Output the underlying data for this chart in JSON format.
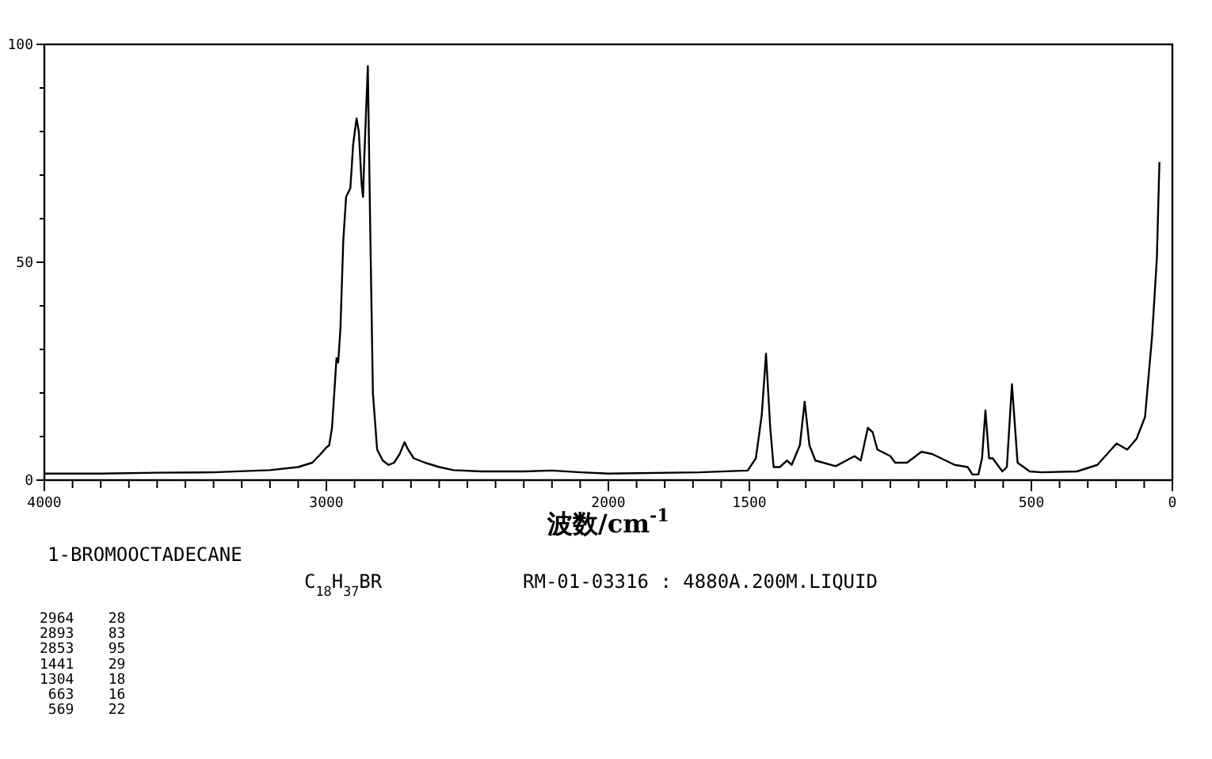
{
  "chart_data": {
    "type": "line",
    "xlabel": "波数/cm$^{-1}$",
    "annotations": [
      "1-BROMOOCTADECANE",
      "C$_{18}$H$_{37}$BR",
      "RM-01-03316 : 4880A.200M.LIQUID",
      "2964    28",
      "2893    83",
      "2853    95",
      "1441    29",
      "1304    18",
      " 663    16",
      " 569    22"
    ],
    "x": [
      4000,
      3800,
      3600,
      3400,
      3200,
      3100,
      3050,
      3020,
      3000,
      2990,
      2980,
      2970,
      2964,
      2958,
      2950,
      2940,
      2930,
      2915,
      2905,
      2893,
      2885,
      2875,
      2870,
      2865,
      2853,
      2845,
      2835,
      2820,
      2800,
      2780,
      2760,
      2740,
      2723,
      2710,
      2690,
      2650,
      2600,
      2550,
      2450,
      2300,
      2200,
      2100,
      2000,
      1675,
      1506,
      1477,
      1456,
      1441,
      1426,
      1414,
      1392,
      1367,
      1350,
      1321,
      1304,
      1287,
      1266,
      1194,
      1127,
      1105,
      1080,
      1063,
      1046,
      1000,
      983,
      941,
      890,
      852,
      772,
      726,
      709,
      688,
      675,
      663,
      650,
      637,
      603,
      587,
      569,
      549,
      506,
      464,
      338,
      266,
      198,
      160,
      127,
      97,
      72,
      55,
      46
    ],
    "values": [
      1.5,
      1.5,
      1.7,
      1.8,
      2.3,
      3,
      4,
      6,
      7.5,
      8,
      12,
      22,
      28,
      27,
      35,
      55,
      65,
      67,
      77,
      83,
      80,
      68,
      65,
      75,
      95,
      60,
      20,
      7,
      4.5,
      3.5,
      4,
      6,
      8.7,
      7,
      5,
      4,
      3,
      2.3,
      2,
      2,
      2.2,
      1.8,
      1.5,
      1.8,
      2.2,
      5,
      15,
      29,
      12,
      3,
      3,
      4.5,
      3.5,
      8,
      18,
      8,
      4.5,
      3.2,
      5.5,
      4.5,
      12,
      11,
      7,
      5.5,
      4,
      4,
      6.5,
      6,
      3.5,
      3,
      1.3,
      1.3,
      5,
      16,
      5,
      5,
      2,
      3,
      22,
      4,
      2,
      1.8,
      2,
      3.5,
      8.4,
      7,
      9.5,
      14.5,
      33,
      51,
      73
    ],
    "color": "#000000",
    "marker": "none",
    "line_style": "solid",
    "grid": false,
    "xlim": [
      4000,
      0
    ],
    "ylim": [
      0,
      100
    ],
    "xticks": [
      4000,
      {
        "value": 3900,
        "label": null
      },
      {
        "value": 3800,
        "label": null
      },
      {
        "value": 3700,
        "label": null
      },
      {
        "value": 3600,
        "label": null
      },
      {
        "value": 3500,
        "label": null
      },
      {
        "value": 3400,
        "label": null
      },
      {
        "value": 3300,
        "label": null
      },
      {
        "value": 3200,
        "label": null
      },
      {
        "value": 3100,
        "label": null
      },
      3000,
      {
        "value": 2900,
        "label": null
      },
      {
        "value": 2800,
        "label": null
      },
      {
        "value": 2700,
        "label": null
      },
      {
        "value": 2600,
        "label": null
      },
      {
        "value": 2500,
        "label": null
      },
      {
        "value": 2400,
        "label": null
      },
      {
        "value": 2300,
        "label": null
      },
      {
        "value": 2200,
        "label": null
      },
      {
        "value": 2100,
        "label": null
      },
      2000,
      {
        "value": 1900,
        "label": null
      },
      {
        "value": 1800,
        "label": null
      },
      {
        "value": 1700,
        "label": null
      },
      {
        "value": 1600,
        "label": null
      },
      1500,
      {
        "value": 1400,
        "label": null
      },
      {
        "value": 1300,
        "label": null
      },
      {
        "value": 1200,
        "label": null
      },
      {
        "value": 1100,
        "label": null
      },
      {
        "value": 1000,
        "label": null
      },
      {
        "value": 900,
        "label": null
      },
      {
        "value": 800,
        "label": null
      },
      {
        "value": 700,
        "label": null
      },
      {
        "value": 600,
        "label": null
      },
      500,
      {
        "value": 400,
        "label": null
      },
      {
        "value": 300,
        "label": null
      },
      {
        "value": 200,
        "label": null
      },
      {
        "value": 100,
        "label": null
      },
      0
    ],
    "yticks": [
      0,
      {
        "value": 10,
        "label": null
      },
      {
        "value": 20,
        "label": null
      },
      {
        "value": 30,
        "label": null
      },
      {
        "value": 40,
        "label": null
      },
      50,
      {
        "value": 60,
        "label": null
      },
      {
        "value": 70,
        "label": null
      },
      {
        "value": 80,
        "label": null
      },
      {
        "value": 90,
        "label": null
      },
      100
    ]
  }
}
